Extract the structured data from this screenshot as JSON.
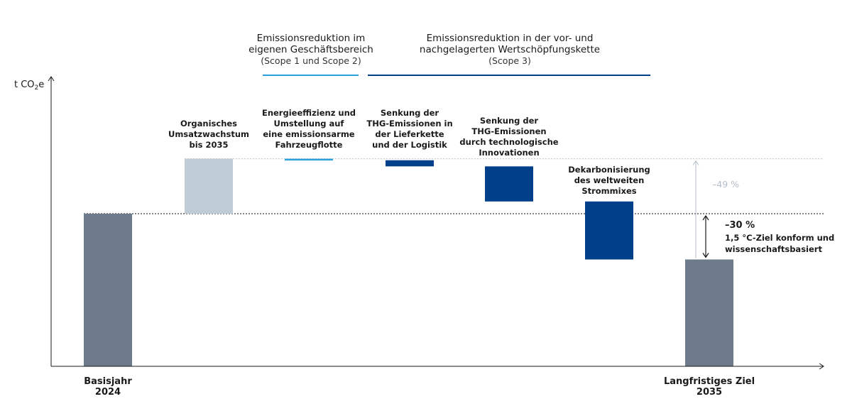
{
  "chart_data": {
    "type": "waterfall",
    "ylabel_main": "t CO",
    "ylabel_sub": "2",
    "ylabel_suffix": "e",
    "y_axis_ticks_shown": false,
    "base_value": 100,
    "ylim": [
      0,
      150
    ],
    "headers": [
      {
        "lines": [
          "Emissionsreduktion im",
          "eigenen Geschäftsbereich",
          "(Scope 1 und Scope 2)"
        ],
        "color": "#29a3e0",
        "covers_steps": [
          2
        ]
      },
      {
        "lines": [
          "Emissionsreduktion in der vor- und",
          "nachgelagerten Wertschöpfungskette",
          "(Scope 3)"
        ],
        "color": "#003f8a",
        "covers_steps": [
          3,
          4,
          5
        ]
      }
    ],
    "bars": [
      {
        "kind": "total",
        "from": 0,
        "to": 100,
        "color": "#6e7b8b",
        "label_lines": [
          "Basisjahr",
          "2024"
        ],
        "label_pos": "below"
      },
      {
        "kind": "step",
        "from": 100,
        "to": 136,
        "color": "#bfcbd5",
        "label_lines": [
          "Organisches",
          "Umsatzwachstum",
          "bis 2035"
        ],
        "label_pos": "above"
      },
      {
        "kind": "step",
        "from": 136,
        "to": 135,
        "color": "#29a3e0",
        "label_lines": [
          "Energieeffizienz und",
          "Umstellung auf",
          "eine emissionsarme",
          "Fahrzeugflotte"
        ],
        "label_pos": "above"
      },
      {
        "kind": "step",
        "from": 135,
        "to": 131,
        "color": "#003f8a",
        "label_lines": [
          "Senkung der",
          "THG-Emissionen in",
          "der Lieferkette",
          "und der Logistik"
        ],
        "label_pos": "above"
      },
      {
        "kind": "step",
        "from": 131,
        "to": 108,
        "color": "#003f8a",
        "label_lines": [
          "Senkung der",
          "THG-Emissionen",
          "durch technologische",
          "Innovationen"
        ],
        "label_pos": "above"
      },
      {
        "kind": "step",
        "from": 108,
        "to": 70,
        "color": "#003f8a",
        "label_lines": [
          "Dekarbonisierung",
          "des weltweiten",
          "Strommixes"
        ],
        "label_pos": "above"
      },
      {
        "kind": "total",
        "from": 0,
        "to": 70,
        "color": "#6e7b8b",
        "label_lines": [
          "Langfristiges Ziel",
          "2035"
        ],
        "label_pos": "below"
      }
    ],
    "reference_lines": [
      {
        "value": 136,
        "style": "dotted",
        "color": "#c5ccd3"
      },
      {
        "value": 100,
        "style": "dotted",
        "color": "#3a3a3a"
      }
    ],
    "annotations": [
      {
        "text": "–49 %",
        "from": 136,
        "to": 70,
        "color": "#b4bec9",
        "lines": []
      },
      {
        "text": "–30 %",
        "from": 100,
        "to": 70,
        "color": "#1a1a1a",
        "lines": [
          "1,5 °C-Ziel konform und",
          "wissenschaftsbasiert"
        ]
      }
    ]
  }
}
